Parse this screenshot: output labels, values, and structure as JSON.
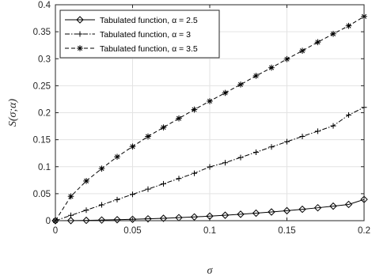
{
  "chart_data": {
    "type": "line",
    "title": "",
    "xlabel": "σ",
    "ylabel": "S(σ;α)",
    "xlim": [
      0,
      0.2
    ],
    "ylim": [
      0,
      0.4
    ],
    "xticks": [
      0,
      0.05,
      0.1,
      0.15,
      0.2
    ],
    "xtick_labels": [
      "0",
      "0.05",
      "0.1",
      "0.15",
      "0.2"
    ],
    "yticks": [
      0,
      0.05,
      0.1,
      0.15,
      0.2,
      0.25,
      0.3,
      0.35,
      0.4
    ],
    "ytick_labels": [
      "0",
      "0.05",
      "0.1",
      "0.15",
      "0.2",
      "0.25",
      "0.3",
      "0.35",
      "0.4"
    ],
    "grid": true,
    "legend_position": "top-left",
    "x": [
      0,
      0.01,
      0.02,
      0.03,
      0.04,
      0.05,
      0.06,
      0.07,
      0.08,
      0.09,
      0.1,
      0.11,
      0.12,
      0.13,
      0.14,
      0.15,
      0.16,
      0.17,
      0.18,
      0.19,
      0.2
    ],
    "series": [
      {
        "name": "Tabulated function, α = 2.5",
        "marker": "diamond",
        "line_style": "solid",
        "values": [
          0,
          0.0002,
          0.0006,
          0.0012,
          0.0018,
          0.0025,
          0.0034,
          0.0044,
          0.0056,
          0.0069,
          0.0084,
          0.0101,
          0.0119,
          0.0139,
          0.0161,
          0.0185,
          0.0211,
          0.0239,
          0.0269,
          0.0301,
          0.0393
        ]
      },
      {
        "name": "Tabulated function, α = 3",
        "marker": "plus",
        "line_style": "dashdot",
        "values": [
          0,
          0.0098,
          0.0195,
          0.0293,
          0.039,
          0.0488,
          0.0585,
          0.0683,
          0.078,
          0.0878,
          0.0997,
          0.1073,
          0.1171,
          0.1268,
          0.1366,
          0.1463,
          0.1561,
          0.1658,
          0.1756,
          0.1958,
          0.2098
        ]
      },
      {
        "name": "Tabulated function, α = 3.5",
        "marker": "asterisk",
        "line_style": "dashed",
        "values": [
          0,
          0.045,
          0.0735,
          0.0965,
          0.1183,
          0.1373,
          0.156,
          0.1727,
          0.1895,
          0.2058,
          0.2214,
          0.2367,
          0.2522,
          0.2683,
          0.2834,
          0.2993,
          0.3148,
          0.3307,
          0.3461,
          0.3609,
          0.3783
        ]
      }
    ]
  }
}
